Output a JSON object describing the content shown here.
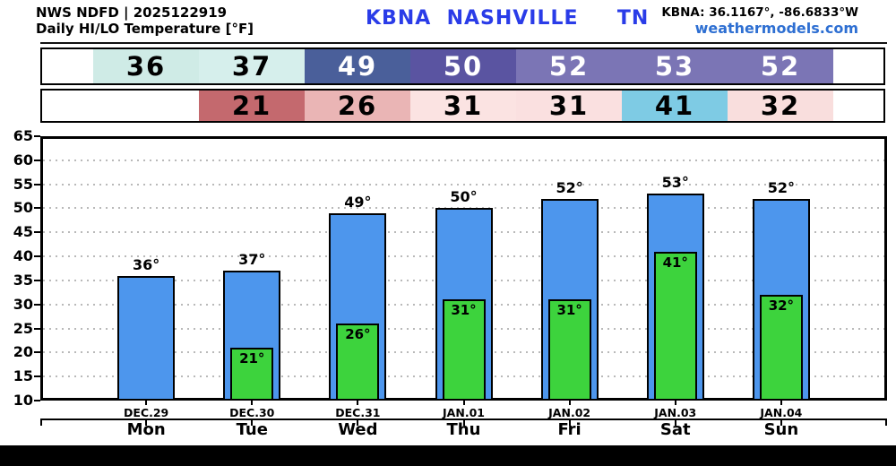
{
  "header": {
    "model_line": "NWS NDFD | 2025122919",
    "product_line": "Daily HI/LO Temperature [°F]",
    "station_title": "KBNA  NASHVILLE     TN",
    "station_title_color": "#2a3ce8",
    "coords": "KBNA: 36.1167°, -86.6833°W",
    "site": "weathermodels.com",
    "site_color": "#2e6fd2"
  },
  "strip": {
    "hi_cells": [
      {
        "label": "36",
        "bg": "#cfebe6",
        "fg": "#000000",
        "col": 0
      },
      {
        "label": "37",
        "bg": "#d6efec",
        "fg": "#000000",
        "col": 1
      },
      {
        "label": "49",
        "bg": "#4a5f9a",
        "fg": "#ffffff",
        "col": 2
      },
      {
        "label": "50",
        "bg": "#5a54a1",
        "fg": "#ffffff",
        "col": 3
      },
      {
        "label": "52",
        "bg": "#7b75b5",
        "fg": "#ffffff",
        "col": 4
      },
      {
        "label": "53",
        "bg": "#7b75b5",
        "fg": "#ffffff",
        "col": 5
      },
      {
        "label": "52",
        "bg": "#7b75b5",
        "fg": "#ffffff",
        "col": 6
      }
    ],
    "lo_cells": [
      {
        "label": "21",
        "bg": "#c4696e",
        "fg": "#000000",
        "col": 1
      },
      {
        "label": "26",
        "bg": "#eab5b5",
        "fg": "#000000",
        "col": 2
      },
      {
        "label": "31",
        "bg": "#fbe3e2",
        "fg": "#000000",
        "col": 3
      },
      {
        "label": "31",
        "bg": "#fae0e0",
        "fg": "#000000",
        "col": 4
      },
      {
        "label": "41",
        "bg": "#7ecbe4",
        "fg": "#000000",
        "col": 5
      },
      {
        "label": "32",
        "bg": "#f9dedd",
        "fg": "#000000",
        "col": 6
      }
    ]
  },
  "chart_data": {
    "type": "bar",
    "title": "Daily HI/LO Temperature [°F]",
    "categories": [
      "Mon",
      "Tue",
      "Wed",
      "Thu",
      "Fri",
      "Sat",
      "Sun"
    ],
    "dates": [
      "DEC.29",
      "DEC.30",
      "DEC.31",
      "JAN.01",
      "JAN.02",
      "JAN.03",
      "JAN.04"
    ],
    "series": [
      {
        "name": "HI",
        "color": "#4d96ed",
        "values": [
          36,
          37,
          49,
          50,
          52,
          53,
          52
        ]
      },
      {
        "name": "LO",
        "color": "#3dd33d",
        "values": [
          null,
          21,
          26,
          31,
          31,
          41,
          32
        ]
      }
    ],
    "value_suffix": "°",
    "ylim": [
      10,
      65
    ],
    "ytick_step": 5,
    "grid": "dotted",
    "gridline_color": "#b9b9b9",
    "legend_position": "none"
  }
}
